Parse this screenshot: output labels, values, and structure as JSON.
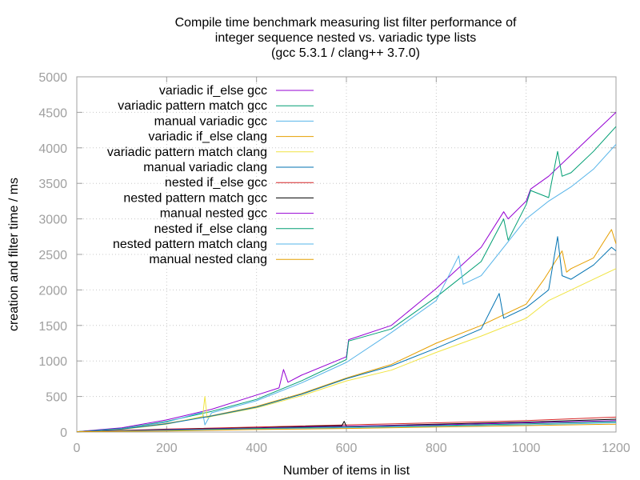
{
  "chart_data": {
    "type": "line",
    "title_lines": [
      "Compile time benchmark measuring list filter performance of",
      "integer sequence nested vs. variadic type lists",
      "(gcc 5.3.1 / clang++ 3.7.0)"
    ],
    "xlabel": "Number of items in list",
    "ylabel": "creation and filter time / ms",
    "xlim": [
      0,
      1200
    ],
    "ylim": [
      0,
      5000
    ],
    "xticks": [
      0,
      200,
      400,
      600,
      800,
      1000,
      1200
    ],
    "yticks": [
      0,
      500,
      1000,
      1500,
      2000,
      2500,
      3000,
      3500,
      4000,
      4500,
      5000
    ],
    "grid": true,
    "legend_position": "top-left",
    "series": [
      {
        "name": "variadic if_else gcc",
        "color": "#9400d3",
        "points": [
          [
            0,
            5
          ],
          [
            100,
            60
          ],
          [
            200,
            170
          ],
          [
            300,
            320
          ],
          [
            400,
            520
          ],
          [
            450,
            620
          ],
          [
            460,
            880
          ],
          [
            470,
            700
          ],
          [
            500,
            800
          ],
          [
            600,
            1060
          ],
          [
            605,
            1300
          ],
          [
            700,
            1500
          ],
          [
            800,
            2020
          ],
          [
            900,
            2600
          ],
          [
            950,
            3100
          ],
          [
            960,
            3000
          ],
          [
            1000,
            3250
          ],
          [
            1010,
            3420
          ],
          [
            1050,
            3600
          ],
          [
            1100,
            3900
          ],
          [
            1150,
            4200
          ],
          [
            1200,
            4500
          ]
        ]
      },
      {
        "name": "variadic pattern match gcc",
        "color": "#009e73",
        "points": [
          [
            0,
            5
          ],
          [
            100,
            50
          ],
          [
            200,
            150
          ],
          [
            300,
            290
          ],
          [
            400,
            460
          ],
          [
            500,
            720
          ],
          [
            600,
            1020
          ],
          [
            605,
            1280
          ],
          [
            700,
            1450
          ],
          [
            800,
            1900
          ],
          [
            900,
            2400
          ],
          [
            950,
            3000
          ],
          [
            960,
            2700
          ],
          [
            1000,
            3200
          ],
          [
            1010,
            3400
          ],
          [
            1050,
            3300
          ],
          [
            1070,
            3950
          ],
          [
            1080,
            3600
          ],
          [
            1100,
            3650
          ],
          [
            1150,
            3950
          ],
          [
            1200,
            4300
          ]
        ]
      },
      {
        "name": "manual variadic gcc",
        "color": "#56b4e9",
        "points": [
          [
            0,
            5
          ],
          [
            100,
            45
          ],
          [
            200,
            140
          ],
          [
            280,
            280
          ],
          [
            285,
            100
          ],
          [
            300,
            270
          ],
          [
            400,
            440
          ],
          [
            500,
            690
          ],
          [
            600,
            980
          ],
          [
            700,
            1400
          ],
          [
            800,
            1850
          ],
          [
            850,
            2480
          ],
          [
            860,
            2080
          ],
          [
            900,
            2200
          ],
          [
            1000,
            3000
          ],
          [
            1050,
            3250
          ],
          [
            1100,
            3450
          ],
          [
            1150,
            3700
          ],
          [
            1200,
            4050
          ]
        ]
      },
      {
        "name": "variadic if_else clang",
        "color": "#e69f00",
        "points": [
          [
            0,
            5
          ],
          [
            100,
            40
          ],
          [
            200,
            120
          ],
          [
            300,
            230
          ],
          [
            400,
            360
          ],
          [
            500,
            540
          ],
          [
            600,
            760
          ],
          [
            700,
            950
          ],
          [
            800,
            1250
          ],
          [
            900,
            1500
          ],
          [
            1000,
            1800
          ],
          [
            1040,
            2150
          ],
          [
            1080,
            2550
          ],
          [
            1090,
            2250
          ],
          [
            1100,
            2300
          ],
          [
            1150,
            2450
          ],
          [
            1190,
            2850
          ],
          [
            1200,
            2650
          ]
        ]
      },
      {
        "name": "variadic pattern match clang",
        "color": "#f0e442",
        "points": [
          [
            0,
            5
          ],
          [
            100,
            35
          ],
          [
            200,
            110
          ],
          [
            280,
            220
          ],
          [
            285,
            500
          ],
          [
            290,
            200
          ],
          [
            300,
            220
          ],
          [
            400,
            340
          ],
          [
            500,
            510
          ],
          [
            600,
            720
          ],
          [
            700,
            870
          ],
          [
            800,
            1120
          ],
          [
            900,
            1350
          ],
          [
            1000,
            1600
          ],
          [
            1050,
            1850
          ],
          [
            1100,
            2000
          ],
          [
            1150,
            2150
          ],
          [
            1200,
            2300
          ]
        ]
      },
      {
        "name": "manual variadic clang",
        "color": "#0072b2",
        "points": [
          [
            0,
            5
          ],
          [
            100,
            40
          ],
          [
            200,
            115
          ],
          [
            300,
            225
          ],
          [
            400,
            350
          ],
          [
            500,
            530
          ],
          [
            600,
            750
          ],
          [
            700,
            930
          ],
          [
            800,
            1180
          ],
          [
            900,
            1450
          ],
          [
            940,
            1950
          ],
          [
            950,
            1600
          ],
          [
            1000,
            1750
          ],
          [
            1050,
            2000
          ],
          [
            1070,
            2750
          ],
          [
            1080,
            2200
          ],
          [
            1100,
            2150
          ],
          [
            1150,
            2350
          ],
          [
            1190,
            2600
          ],
          [
            1200,
            2550
          ]
        ]
      },
      {
        "name": "nested if_else gcc",
        "color": "#d62728",
        "points": [
          [
            0,
            5
          ],
          [
            200,
            40
          ],
          [
            400,
            70
          ],
          [
            600,
            100
          ],
          [
            800,
            130
          ],
          [
            1000,
            160
          ],
          [
            1200,
            210
          ]
        ]
      },
      {
        "name": "nested pattern match gcc",
        "color": "#000000",
        "points": [
          [
            0,
            5
          ],
          [
            200,
            35
          ],
          [
            400,
            60
          ],
          [
            590,
            90
          ],
          [
            595,
            150
          ],
          [
            600,
            80
          ],
          [
            800,
            110
          ],
          [
            1000,
            140
          ],
          [
            1200,
            180
          ]
        ]
      },
      {
        "name": "manual nested gcc",
        "color": "#9400d3",
        "points": [
          [
            0,
            5
          ],
          [
            200,
            30
          ],
          [
            400,
            55
          ],
          [
            600,
            80
          ],
          [
            800,
            100
          ],
          [
            1000,
            130
          ],
          [
            1200,
            160
          ]
        ]
      },
      {
        "name": "nested if_else clang",
        "color": "#009e73",
        "points": [
          [
            0,
            5
          ],
          [
            200,
            25
          ],
          [
            400,
            50
          ],
          [
            600,
            70
          ],
          [
            800,
            90
          ],
          [
            1000,
            115
          ],
          [
            1200,
            145
          ]
        ]
      },
      {
        "name": "nested pattern match clang",
        "color": "#56b4e9",
        "points": [
          [
            0,
            5
          ],
          [
            200,
            20
          ],
          [
            400,
            40
          ],
          [
            600,
            60
          ],
          [
            800,
            80
          ],
          [
            1000,
            100
          ],
          [
            1200,
            130
          ]
        ]
      },
      {
        "name": "manual nested clang",
        "color": "#e69f00",
        "points": [
          [
            0,
            5
          ],
          [
            200,
            15
          ],
          [
            400,
            35
          ],
          [
            600,
            50
          ],
          [
            800,
            70
          ],
          [
            1000,
            90
          ],
          [
            1200,
            110
          ]
        ]
      }
    ]
  }
}
